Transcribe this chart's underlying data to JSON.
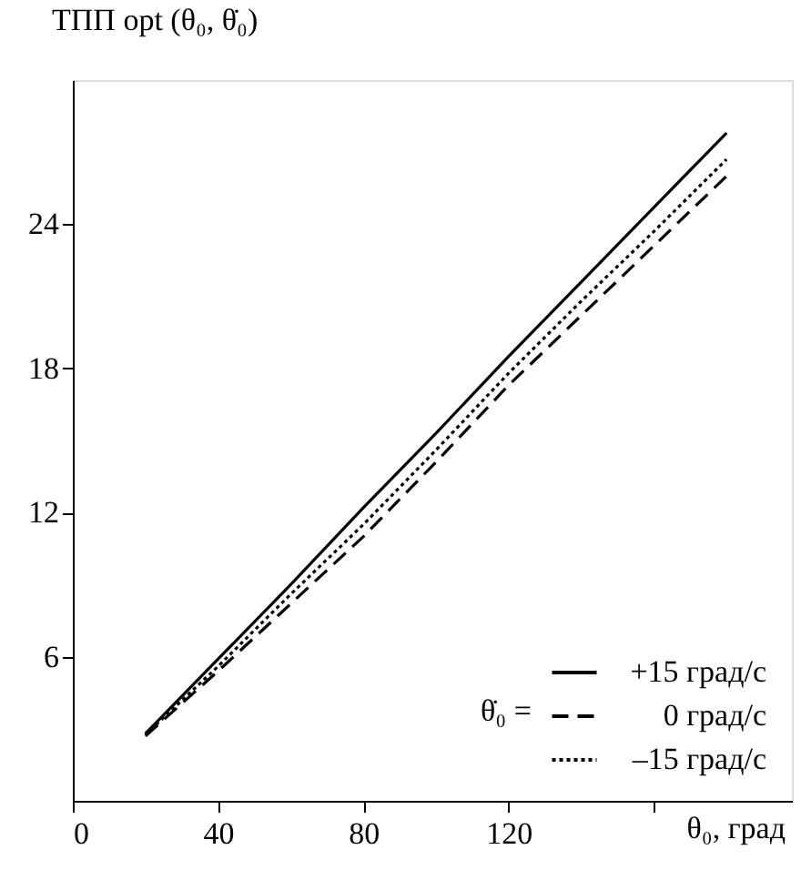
{
  "chart_data": {
    "type": "line",
    "ylabel": "TПП opt (θ₀, θ̇₀)",
    "xlabel": "θ₀, град",
    "legend_title": "θ̇₀ =",
    "x": [
      20,
      40,
      60,
      80,
      100,
      120,
      140,
      160,
      180
    ],
    "series": [
      {
        "name": "+15 град/с",
        "color": "#000000",
        "line_style": "solid",
        "values": [
          2.8,
          5.9,
          9.0,
          12.2,
          15.3,
          18.5,
          21.6,
          24.7,
          27.8
        ]
      },
      {
        "name": "0 град/с",
        "color": "#000000",
        "line_style": "dashed",
        "values": [
          2.7,
          5.4,
          8.2,
          11.0,
          14.1,
          17.3,
          20.2,
          23.1,
          26.0
        ]
      },
      {
        "name": "–15 град/с",
        "color": "#000000",
        "line_style": "dotted",
        "values": [
          2.75,
          5.6,
          8.6,
          11.5,
          14.6,
          17.8,
          20.8,
          23.7,
          26.7
        ]
      }
    ],
    "xlim": [
      0,
      198
    ],
    "ylim": [
      0,
      30
    ],
    "xticks": [
      0,
      40,
      80,
      120,
      {
        "value": 160,
        "label": null
      }
    ],
    "yticks": [
      6,
      12,
      18,
      24
    ],
    "grid": false,
    "legend": "bottom right",
    "marker": "none"
  }
}
